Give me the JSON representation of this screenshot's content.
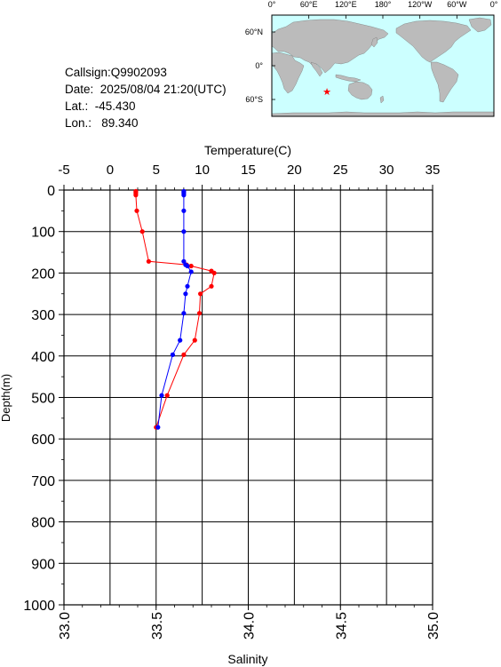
{
  "info": {
    "callsign": "Callsign:Q9902093",
    "date": "Date:  2025/08/04 21:20(UTC)",
    "lat": "Lat.:  -45.430",
    "lon": "Lon.:   89.340"
  },
  "map": {
    "lon_labels": [
      "0°",
      "60°E",
      "120°E",
      "180°",
      "120°W",
      "60°W",
      "0°"
    ],
    "lat_labels": [
      "60°N",
      "0°",
      "60°S"
    ],
    "ocean_color": "#ccffff",
    "land_color": "#bbbbbb",
    "marker": {
      "lat": -45.43,
      "lon": 89.34,
      "symbol": "★",
      "color": "#ff0000"
    }
  },
  "chart_data": {
    "type": "line",
    "top_axis_label": "Temperature(C)",
    "bottom_axis_label": "Salinity",
    "ylabel": "Depth(m)",
    "temperature_ticks": [
      "-5",
      "0",
      "5",
      "10",
      "15",
      "20",
      "25",
      "30",
      "35"
    ],
    "salinity_ticks": [
      "33.0",
      "33.5",
      "34.0",
      "34.5",
      "35.0"
    ],
    "depth_ticks": [
      "0",
      "100",
      "200",
      "300",
      "400",
      "500",
      "600",
      "700",
      "800",
      "900",
      "1000"
    ],
    "temperature_range": [
      -5,
      35
    ],
    "salinity_range": [
      33.0,
      35.0
    ],
    "depth_range": [
      0,
      1000
    ],
    "depth_reversed": true,
    "grid": true,
    "series": [
      {
        "name": "Temperature",
        "color": "#ff0000",
        "axis": "temperature",
        "points": [
          {
            "t": 2.8,
            "d": 3
          },
          {
            "t": 2.8,
            "d": 5
          },
          {
            "t": 2.8,
            "d": 8
          },
          {
            "t": 2.8,
            "d": 12
          },
          {
            "t": 2.9,
            "d": 50
          },
          {
            "t": 3.5,
            "d": 100
          },
          {
            "t": 4.2,
            "d": 172
          },
          {
            "t": 8.3,
            "d": 180
          },
          {
            "t": 8.8,
            "d": 183
          },
          {
            "t": 11.0,
            "d": 195
          },
          {
            "t": 11.3,
            "d": 200
          },
          {
            "t": 11.0,
            "d": 232
          },
          {
            "t": 9.8,
            "d": 250
          },
          {
            "t": 9.7,
            "d": 297
          },
          {
            "t": 9.2,
            "d": 362
          },
          {
            "t": 8.0,
            "d": 397
          },
          {
            "t": 6.2,
            "d": 495
          },
          {
            "t": 5.0,
            "d": 572
          }
        ]
      },
      {
        "name": "Salinity",
        "color": "#0000ff",
        "axis": "salinity",
        "points": [
          {
            "s": 33.65,
            "d": 3
          },
          {
            "s": 33.65,
            "d": 5
          },
          {
            "s": 33.65,
            "d": 8
          },
          {
            "s": 33.65,
            "d": 12
          },
          {
            "s": 33.65,
            "d": 50
          },
          {
            "s": 33.65,
            "d": 100
          },
          {
            "s": 33.65,
            "d": 172
          },
          {
            "s": 33.66,
            "d": 180
          },
          {
            "s": 33.67,
            "d": 183
          },
          {
            "s": 33.69,
            "d": 197
          },
          {
            "s": 33.67,
            "d": 232
          },
          {
            "s": 33.66,
            "d": 250
          },
          {
            "s": 33.65,
            "d": 297
          },
          {
            "s": 33.63,
            "d": 362
          },
          {
            "s": 33.59,
            "d": 397
          },
          {
            "s": 33.53,
            "d": 495
          },
          {
            "s": 33.51,
            "d": 572
          }
        ]
      }
    ]
  }
}
